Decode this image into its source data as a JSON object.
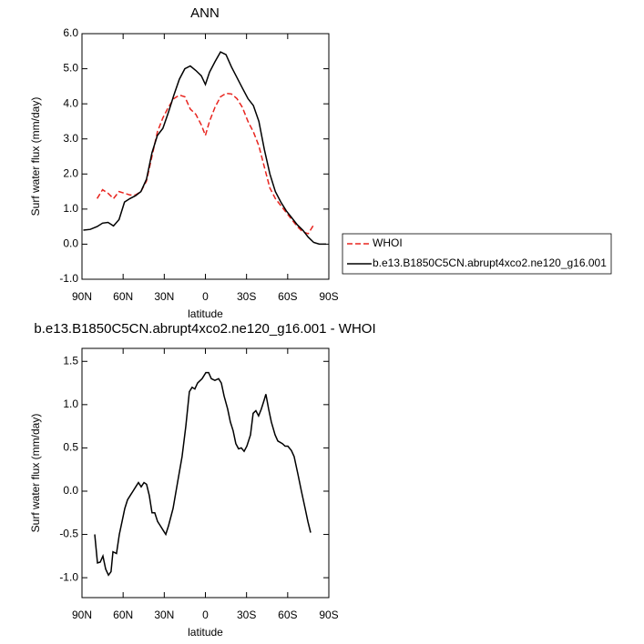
{
  "chart_data": [
    {
      "type": "line",
      "title": "ANN",
      "xlabel": "latitude",
      "ylabel": "Surf water flux (mm/day)",
      "x": [
        89,
        84,
        79,
        75,
        71,
        67,
        63,
        59,
        55,
        51,
        47,
        43,
        39,
        35,
        31,
        27,
        23,
        19,
        15,
        11,
        7,
        3,
        0,
        -3,
        -7,
        -11,
        -15,
        -19,
        -23,
        -27,
        -31,
        -35,
        -39,
        -43,
        -47,
        -51,
        -55,
        -59,
        -63,
        -67,
        -71,
        -75,
        -79,
        -83,
        -88
      ],
      "series": [
        {
          "name": "WHOI",
          "color": "#e8251f",
          "linestyle": "dashed",
          "values": [
            null,
            null,
            1.3,
            1.55,
            1.45,
            1.3,
            1.5,
            1.45,
            1.4,
            1.4,
            1.5,
            1.8,
            2.5,
            3.2,
            3.6,
            3.9,
            4.15,
            4.25,
            4.2,
            3.85,
            3.7,
            3.4,
            3.1,
            3.5,
            3.9,
            4.2,
            4.3,
            4.28,
            4.15,
            3.9,
            3.5,
            3.2,
            2.8,
            2.2,
            1.6,
            1.3,
            1.1,
            0.9,
            0.7,
            0.5,
            0.35,
            0.3,
            0.55,
            null,
            null
          ]
        },
        {
          "name": "b.e13.B1850C5CN.abrupt4xco2.ne120_g16.001",
          "color": "#000000",
          "linestyle": "solid",
          "values": [
            0.4,
            0.42,
            0.5,
            0.6,
            0.62,
            0.52,
            0.7,
            1.2,
            1.3,
            1.38,
            1.5,
            1.85,
            2.6,
            3.1,
            3.3,
            3.75,
            4.25,
            4.7,
            5.0,
            5.08,
            4.95,
            4.8,
            4.55,
            4.9,
            5.2,
            5.48,
            5.4,
            5.05,
            4.75,
            4.45,
            4.15,
            3.95,
            3.5,
            2.7,
            2.0,
            1.5,
            1.2,
            0.95,
            0.75,
            0.55,
            0.4,
            0.2,
            0.05,
            0.0,
            0.0
          ]
        }
      ],
      "xlim": [
        90,
        -90
      ],
      "xticks": [
        {
          "value": 90,
          "label": "90N"
        },
        {
          "value": 60,
          "label": "60N"
        },
        {
          "value": 30,
          "label": "30N"
        },
        0,
        {
          "value": -30,
          "label": "30S"
        },
        {
          "value": -60,
          "label": "60S"
        },
        {
          "value": -90,
          "label": "90S"
        }
      ],
      "ylim": [
        -1,
        6
      ],
      "yticks": [
        {
          "value": 6,
          "label": "6.0"
        },
        {
          "value": 5,
          "label": "5.0"
        },
        {
          "value": 4,
          "label": "4.0"
        },
        {
          "value": 3,
          "label": "3.0"
        },
        {
          "value": 2,
          "label": "2.0"
        },
        {
          "value": 1,
          "label": "1.0"
        },
        {
          "value": 0,
          "label": "0.0"
        },
        {
          "value": -1,
          "label": "-1.0"
        }
      ],
      "legend": "right"
    },
    {
      "type": "line",
      "title": "b.e13.B1850C5CN.abrupt4xco2.ne120_g16.001 - WHOI",
      "xlabel": "latitude",
      "ylabel": "Surf water flux (mm/day)",
      "x": [
        80.7,
        78.7,
        76.7,
        74.7,
        72.7,
        70.7,
        68.8,
        67.4,
        64.8,
        62.8,
        60.8,
        58.8,
        56.8,
        54.8,
        52.8,
        50.8,
        48.8,
        46.8,
        44.8,
        42.9,
        40.9,
        38.9,
        36.9,
        34.9,
        32.9,
        30.9,
        28.9,
        26.9,
        23.6,
        20.3,
        17.0,
        14.3,
        11.7,
        9.7,
        7.7,
        5.7,
        2.4,
        -0.3,
        -2.3,
        -4.3,
        -6.9,
        -9.6,
        -11.6,
        -13.6,
        -16.2,
        -18.2,
        -20.2,
        -22.2,
        -24.2,
        -26.2,
        -28.2,
        -30.2,
        -32.9,
        -34.8,
        -36.8,
        -38.8,
        -40.8,
        -42.8,
        -44.1,
        -46.1,
        -48.1,
        -50.8,
        -52.8,
        -56.1,
        -58.1,
        -60.1,
        -62.7,
        -64.7,
        -67.4,
        -70.0,
        -72.7,
        -74.7,
        -76.7
      ],
      "series": [
        {
          "color": "#000000",
          "linestyle": "solid",
          "values": [
            -0.5,
            -0.83,
            -0.82,
            -0.75,
            -0.9,
            -0.97,
            -0.93,
            -0.7,
            -0.72,
            -0.5,
            -0.35,
            -0.2,
            -0.1,
            -0.05,
            0.0,
            0.05,
            0.1,
            0.05,
            0.1,
            0.08,
            -0.05,
            -0.25,
            -0.25,
            -0.35,
            -0.4,
            -0.45,
            -0.5,
            -0.4,
            -0.2,
            0.1,
            0.4,
            0.75,
            1.15,
            1.2,
            1.18,
            1.25,
            1.3,
            1.37,
            1.37,
            1.3,
            1.28,
            1.3,
            1.25,
            1.1,
            0.95,
            0.8,
            0.7,
            0.55,
            0.49,
            0.5,
            0.46,
            0.52,
            0.65,
            0.9,
            0.93,
            0.87,
            0.95,
            1.05,
            1.12,
            0.95,
            0.8,
            0.65,
            0.58,
            0.55,
            0.52,
            0.52,
            0.47,
            0.4,
            0.2,
            0.0,
            -0.2,
            -0.35,
            -0.48
          ]
        }
      ],
      "xlim": [
        90,
        -90
      ],
      "xticks": [
        {
          "value": 90,
          "label": "90N"
        },
        {
          "value": 60,
          "label": "60N"
        },
        {
          "value": 30,
          "label": "30N"
        },
        0,
        {
          "value": -30,
          "label": "30S"
        },
        {
          "value": -60,
          "label": "60S"
        },
        {
          "value": -90,
          "label": "90S"
        }
      ],
      "ylim": [
        -1.23,
        1.65
      ],
      "yticks": [
        1.5,
        {
          "value": 1,
          "label": "1.0"
        },
        0.5,
        {
          "value": 0,
          "label": "0.0"
        },
        -0.5,
        {
          "value": -1,
          "label": "-1.0"
        }
      ]
    }
  ]
}
